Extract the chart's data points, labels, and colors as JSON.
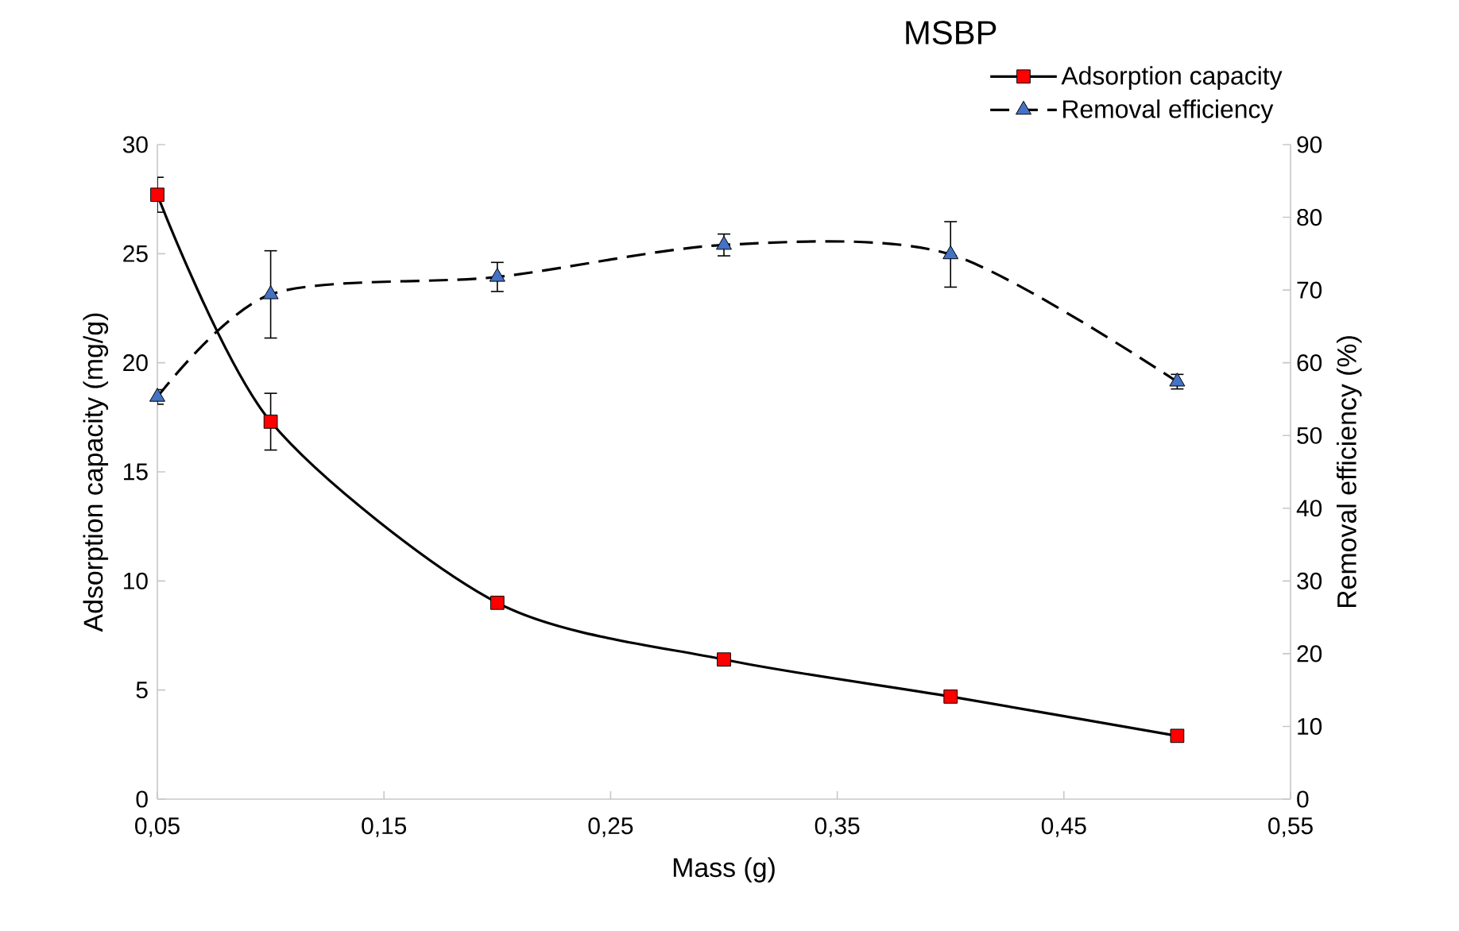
{
  "chart_data": {
    "type": "line",
    "title": "MSBP",
    "xlabel": "Mass (g)",
    "ylabel": "Adsorption capacity (mg/g)",
    "y2label": "Removal efficiency (%)",
    "x": [
      0.05,
      0.1,
      0.2,
      0.3,
      0.4,
      0.5
    ],
    "series": [
      {
        "name": "Adsorption capacity",
        "color": "#ff0000",
        "marker": "square",
        "line_style": "solid",
        "values": [
          27.7,
          17.3,
          9.0,
          6.4,
          4.7,
          2.9
        ],
        "errors": [
          0.8,
          1.3,
          null,
          null,
          null,
          null
        ]
      },
      {
        "name": "Removal efficiency",
        "color": "#4472c4",
        "marker": "triangle",
        "line_style": "dashed",
        "axis": "y2",
        "values": [
          55.3,
          69.4,
          71.8,
          76.2,
          74.9,
          57.4
        ],
        "errors": [
          1,
          6,
          2,
          1.5,
          4.5,
          1
        ]
      }
    ],
    "xlim": [
      0.05,
      0.55
    ],
    "xticks": [
      {
        "value": 0.05,
        "label": "0,05"
      },
      {
        "value": 0.15,
        "label": "0,15"
      },
      {
        "value": 0.25,
        "label": "0,25"
      },
      {
        "value": 0.35,
        "label": "0,35"
      },
      {
        "value": 0.45,
        "label": "0,45"
      },
      {
        "value": 0.55,
        "label": "0,55"
      }
    ],
    "ylim": [
      0,
      30
    ],
    "yticks": [
      0,
      5,
      10,
      15,
      20,
      25,
      30
    ],
    "y2lim": [
      0,
      90
    ],
    "y2ticks": [
      0,
      10,
      20,
      30,
      40,
      50,
      60,
      70,
      80,
      90
    ],
    "grid": false,
    "legend": "top right"
  }
}
